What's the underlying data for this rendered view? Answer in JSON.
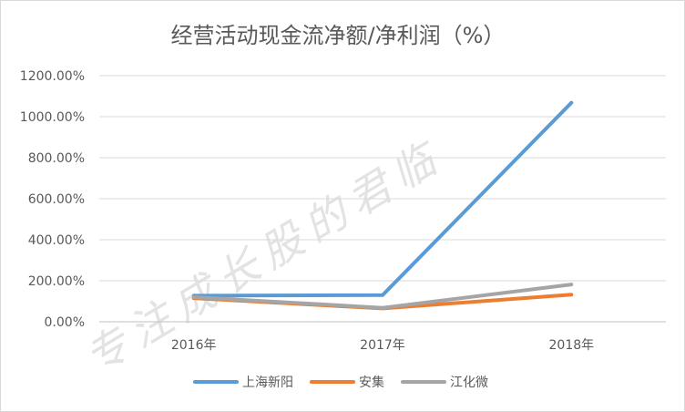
{
  "chart_data": {
    "type": "line",
    "title": "经营活动现金流净额/净利润（%）",
    "categories": [
      "2016年",
      "2017年",
      "2018年"
    ],
    "series": [
      {
        "name": "上海新阳",
        "color": "#5b9bd5",
        "values": [
          127.0,
          130.0,
          1068.0
        ]
      },
      {
        "name": "安集",
        "color": "#ed7d31",
        "values": [
          115.0,
          65.0,
          132.0
        ]
      },
      {
        "name": "江化微",
        "color": "#a5a5a5",
        "values": [
          120.0,
          68.0,
          182.0
        ]
      }
    ],
    "y_ticks": [
      "0.00%",
      "200.00%",
      "400.00%",
      "600.00%",
      "800.00%",
      "1000.00%",
      "1200.00%"
    ],
    "ylim": [
      0,
      1200
    ],
    "grid": true,
    "legend_position": "bottom",
    "watermark": "专注成长股的君临"
  }
}
